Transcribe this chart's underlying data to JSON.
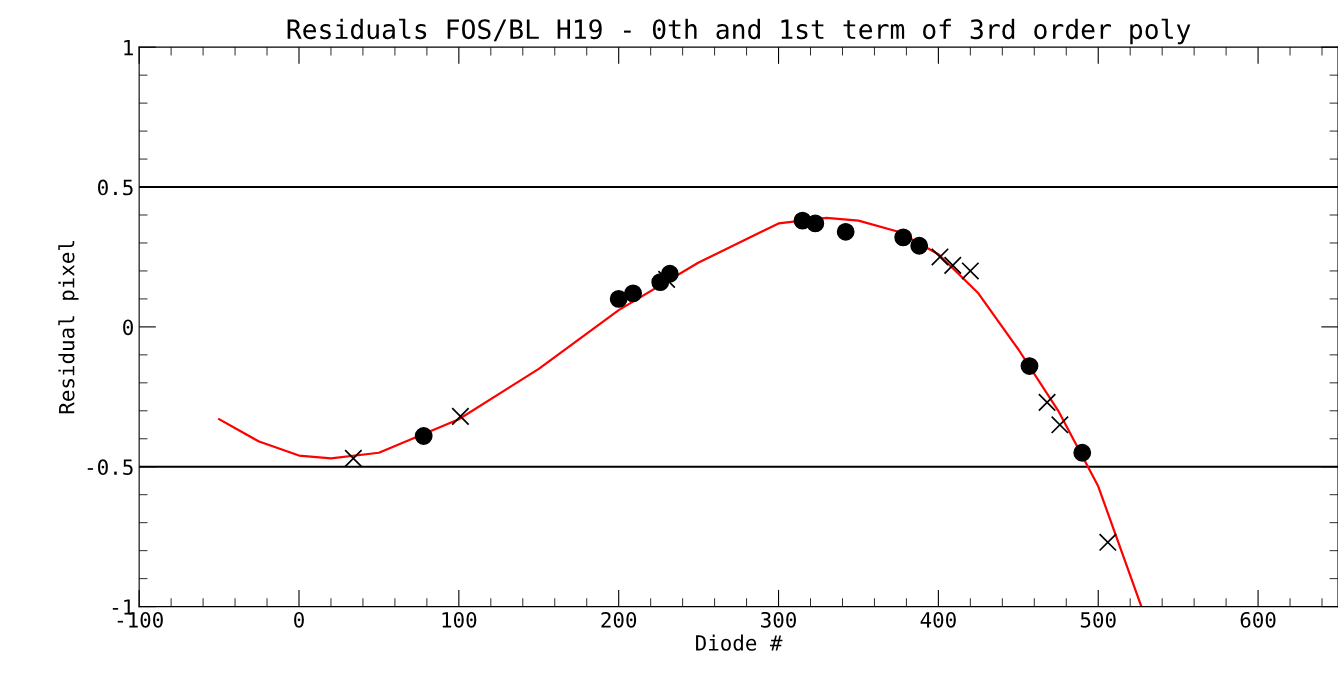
{
  "chart_data": {
    "type": "scatter",
    "title": "Residuals FOS/BL H19 - 0th and 1st term of 3rd order poly",
    "xlabel": "Diode #",
    "ylabel": "Residual pixel",
    "xlim": [
      -100,
      650
    ],
    "xticks": [
      -100,
      0,
      100,
      200,
      300,
      400,
      500,
      600
    ],
    "ylim": [
      -1,
      1
    ],
    "yticks": [
      -1,
      -0.5,
      0,
      0.5,
      1
    ],
    "grid": false,
    "ref_lines": [
      {
        "axis": "y",
        "value": 0.5,
        "color": "#000000"
      },
      {
        "axis": "y",
        "value": -0.5,
        "color": "#000000"
      }
    ],
    "series": [
      {
        "marker": "circle",
        "color": "#000000",
        "x": [
          78,
          200,
          209,
          226,
          232,
          315,
          323,
          342,
          378,
          388,
          457,
          490
        ],
        "values": [
          -0.39,
          0.1,
          0.12,
          0.16,
          0.19,
          0.38,
          0.37,
          0.34,
          0.32,
          0.29,
          -0.14,
          -0.45
        ]
      },
      {
        "marker": "cross",
        "color": "#000000",
        "x": [
          34,
          101,
          230,
          401,
          409,
          420,
          468,
          476,
          506
        ],
        "values": [
          -0.47,
          -0.32,
          0.17,
          0.25,
          0.22,
          0.2,
          -0.27,
          -0.35,
          -0.77
        ]
      },
      {
        "type": "line",
        "marker": "none",
        "color": "#ff0000",
        "x": [
          -50,
          -25,
          0,
          20,
          50,
          100,
          150,
          200,
          250,
          300,
          330,
          350,
          375,
          400,
          425,
          450,
          475,
          500,
          527
        ],
        "values": [
          -0.33,
          -0.41,
          -0.46,
          -0.47,
          -0.45,
          -0.33,
          -0.15,
          0.06,
          0.23,
          0.37,
          0.39,
          0.38,
          0.34,
          0.26,
          0.12,
          -0.08,
          -0.3,
          -0.57,
          -1.0
        ]
      }
    ]
  }
}
